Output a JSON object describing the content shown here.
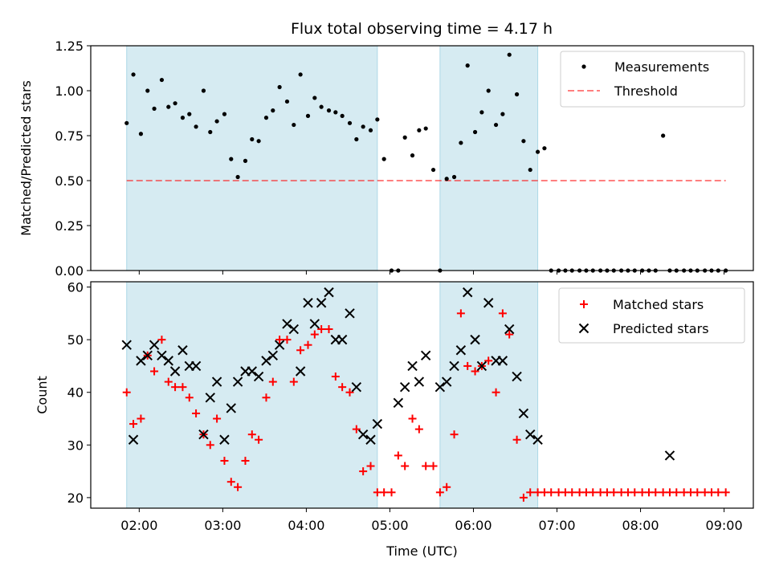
{
  "title": "Flux total observing time = 4.17 h",
  "colors": {
    "shade": "#add8e6",
    "measurement": "#000000",
    "threshold": "#ff0000",
    "matched": "#ff0000",
    "predicted": "#000000"
  },
  "chart_data": [
    {
      "type": "scatter",
      "ylabel": "Matched/Predicted stars",
      "xlim": [
        1.42,
        9.35
      ],
      "ylim": [
        0,
        1.25
      ],
      "yticks": [
        0.0,
        0.25,
        0.5,
        0.75,
        1.0,
        1.25
      ],
      "ytick_labels": [
        "0.00",
        "0.25",
        "0.50",
        "0.75",
        "1.00",
        "1.25"
      ],
      "shaded_intervals": [
        [
          1.85,
          4.85
        ],
        [
          5.6,
          6.77
        ]
      ],
      "threshold": 0.5,
      "legend": {
        "position": "upper right",
        "entries": [
          "Measurements",
          "Threshold"
        ]
      },
      "series": [
        {
          "name": "Measurements",
          "marker": "dot",
          "x": [
            1.85,
            1.93,
            2.02,
            2.1,
            2.18,
            2.27,
            2.35,
            2.43,
            2.52,
            2.6,
            2.68,
            2.77,
            2.85,
            2.93,
            3.02,
            3.1,
            3.18,
            3.27,
            3.35,
            3.43,
            3.52,
            3.6,
            3.68,
            3.77,
            3.85,
            3.93,
            4.02,
            4.1,
            4.18,
            4.27,
            4.35,
            4.43,
            4.52,
            4.6,
            4.68,
            4.77,
            4.85,
            4.93,
            5.02,
            5.1,
            5.18,
            5.27,
            5.35,
            5.43,
            5.52,
            5.6,
            5.68,
            5.77,
            5.85,
            5.93,
            6.02,
            6.1,
            6.18,
            6.27,
            6.35,
            6.43,
            6.52,
            6.6,
            6.68,
            6.77,
            6.85,
            6.93,
            7.02,
            7.1,
            7.18,
            7.27,
            7.35,
            7.43,
            7.52,
            7.6,
            7.68,
            7.77,
            7.85,
            7.93,
            8.02,
            8.1,
            8.18,
            8.27,
            8.35,
            8.43,
            8.52,
            8.6,
            8.68,
            8.77,
            8.85,
            8.93,
            9.02
          ],
          "y": [
            0.82,
            1.09,
            0.76,
            1.0,
            0.9,
            1.06,
            0.91,
            0.93,
            0.85,
            0.87,
            0.8,
            1.0,
            0.77,
            0.83,
            0.87,
            0.62,
            0.52,
            0.61,
            0.73,
            0.72,
            0.85,
            0.89,
            1.02,
            0.94,
            0.81,
            1.09,
            0.86,
            0.96,
            0.91,
            0.89,
            0.88,
            0.86,
            0.82,
            0.73,
            0.8,
            0.78,
            0.84,
            0.62,
            0.0,
            0.0,
            0.74,
            0.64,
            0.78,
            0.79,
            0.56,
            0.0,
            0.51,
            0.52,
            0.71,
            1.14,
            0.77,
            0.88,
            1.0,
            0.81,
            0.87,
            1.2,
            0.98,
            0.72,
            0.56,
            0.66,
            0.68,
            0.0,
            0.0,
            0.0,
            0.0,
            0.0,
            0.0,
            0.0,
            0.0,
            0.0,
            0.0,
            0.0,
            0.0,
            0.0,
            0.0,
            0.0,
            0.0,
            0.75,
            0.0,
            0.0,
            0.0,
            0.0,
            0.0,
            0.0,
            0.0,
            0.0,
            0.0
          ]
        },
        {
          "name": "Threshold",
          "type": "line",
          "style": "dashed",
          "x": [
            1.85,
            9.02
          ],
          "y": [
            0.5,
            0.5
          ]
        }
      ]
    },
    {
      "type": "scatter",
      "xlabel": "Time (UTC)",
      "ylabel": "Count",
      "xlim": [
        1.42,
        9.35
      ],
      "ylim": [
        18.0,
        61.0
      ],
      "xticks": [
        2,
        3,
        4,
        5,
        6,
        7,
        8,
        9
      ],
      "xtick_labels": [
        "02:00",
        "03:00",
        "04:00",
        "05:00",
        "06:00",
        "07:00",
        "08:00",
        "09:00"
      ],
      "yticks": [
        20,
        30,
        40,
        50,
        60
      ],
      "ytick_labels": [
        "20",
        "30",
        "40",
        "50",
        "60"
      ],
      "shaded_intervals": [
        [
          1.85,
          4.85
        ],
        [
          5.6,
          6.77
        ]
      ],
      "legend": {
        "position": "upper right",
        "entries": [
          "Matched stars",
          "Predicted stars"
        ]
      },
      "series": [
        {
          "name": "Matched stars",
          "marker": "plus",
          "x": [
            1.85,
            1.93,
            2.02,
            2.1,
            2.18,
            2.27,
            2.35,
            2.43,
            2.52,
            2.6,
            2.68,
            2.77,
            2.85,
            2.93,
            3.02,
            3.1,
            3.18,
            3.27,
            3.35,
            3.43,
            3.52,
            3.6,
            3.68,
            3.77,
            3.85,
            3.93,
            4.02,
            4.1,
            4.18,
            4.27,
            4.35,
            4.43,
            4.52,
            4.6,
            4.68,
            4.77,
            4.85,
            4.93,
            5.02,
            5.1,
            5.18,
            5.27,
            5.35,
            5.43,
            5.52,
            5.6,
            5.68,
            5.77,
            5.85,
            5.93,
            6.02,
            6.1,
            6.18,
            6.27,
            6.35,
            6.43,
            6.52,
            6.6,
            6.68,
            6.77,
            6.85,
            6.93,
            7.02,
            7.1,
            7.18,
            7.27,
            7.35,
            7.43,
            7.52,
            7.6,
            7.68,
            7.77,
            7.85,
            7.93,
            8.02,
            8.1,
            8.18,
            8.27,
            8.35,
            8.43,
            8.52,
            8.6,
            8.68,
            8.77,
            8.85,
            8.93,
            9.02
          ],
          "y": [
            40,
            34,
            35,
            47,
            44,
            50,
            42,
            41,
            41,
            39,
            36,
            32,
            30,
            35,
            27,
            23,
            22,
            27,
            32,
            31,
            39,
            42,
            50,
            50,
            42,
            48,
            49,
            51,
            52,
            52,
            43,
            41,
            40,
            33,
            25,
            26,
            21,
            21,
            21,
            28,
            26,
            35,
            33,
            26,
            26,
            21,
            22,
            32,
            55,
            45,
            44,
            45,
            46,
            40,
            55,
            51,
            31,
            20,
            21,
            21,
            21,
            21,
            21,
            21,
            21,
            21,
            21,
            21,
            21,
            21,
            21,
            21,
            21,
            21,
            21,
            21,
            21,
            21,
            21,
            21,
            21,
            21,
            21,
            21,
            21,
            21,
            21
          ]
        },
        {
          "name": "Predicted stars",
          "marker": "x",
          "x": [
            1.85,
            1.93,
            2.02,
            2.1,
            2.18,
            2.27,
            2.35,
            2.43,
            2.52,
            2.6,
            2.68,
            2.77,
            2.85,
            2.93,
            3.02,
            3.1,
            3.18,
            3.27,
            3.35,
            3.43,
            3.52,
            3.6,
            3.68,
            3.77,
            3.85,
            3.93,
            4.02,
            4.1,
            4.18,
            4.27,
            4.35,
            4.43,
            4.52,
            4.6,
            4.68,
            4.77,
            4.85,
            5.1,
            5.18,
            5.27,
            5.35,
            5.43,
            5.6,
            5.68,
            5.77,
            5.85,
            5.93,
            6.02,
            6.1,
            6.18,
            6.27,
            6.35,
            6.43,
            6.52,
            6.6,
            6.68,
            6.77,
            8.35
          ],
          "y": [
            49,
            31,
            46,
            47,
            49,
            47,
            46,
            44,
            48,
            45,
            45,
            32,
            39,
            42,
            31,
            37,
            42,
            44,
            44,
            43,
            46,
            47,
            49,
            53,
            52,
            44,
            57,
            53,
            57,
            59,
            50,
            50,
            55,
            41,
            32,
            31,
            34,
            38,
            41,
            45,
            42,
            47,
            41,
            42,
            45,
            48,
            59,
            50,
            45,
            57,
            46,
            46,
            52,
            43,
            36,
            32,
            31,
            28
          ]
        }
      ]
    }
  ]
}
